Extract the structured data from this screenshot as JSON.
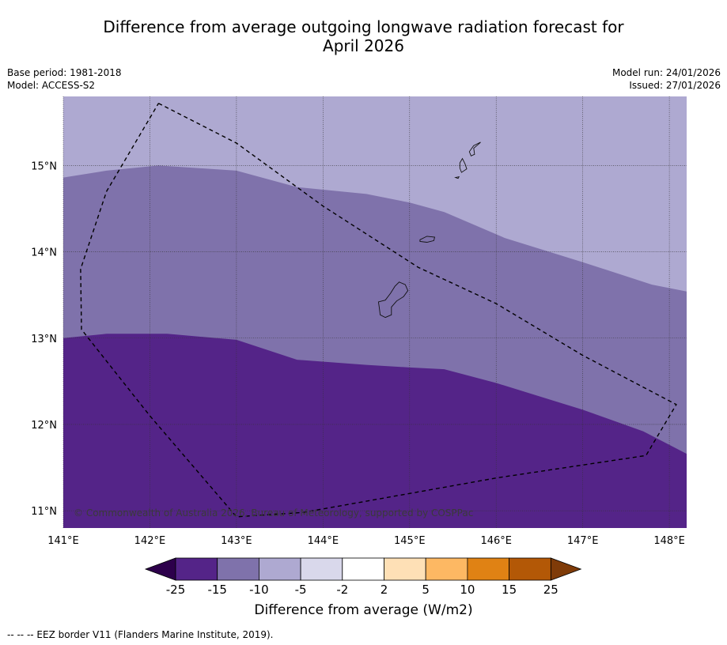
{
  "title": {
    "line1": "Difference from average outgoing longwave radiation forecast for",
    "line2": "April 2026"
  },
  "meta": {
    "base_period": "Base period: 1981-2018",
    "model": "Model: ACCESS-S2",
    "model_run": "Model run: 24/01/2026",
    "issued": "Issued: 27/01/2026"
  },
  "map": {
    "lon_range": [
      141.0,
      148.2
    ],
    "lat_range": [
      10.8,
      15.8
    ],
    "lat_ticks": [
      {
        "value": 15,
        "label": "15°N"
      },
      {
        "value": 14,
        "label": "14°N"
      },
      {
        "value": 13,
        "label": "13°N"
      },
      {
        "value": 12,
        "label": "12°N"
      },
      {
        "value": 11,
        "label": "11°N"
      }
    ],
    "lon_ticks": [
      {
        "value": 141,
        "label": "141°E"
      },
      {
        "value": 142,
        "label": "142°E"
      },
      {
        "value": 143,
        "label": "143°E"
      },
      {
        "value": 144,
        "label": "144°E"
      },
      {
        "value": 145,
        "label": "145°E"
      },
      {
        "value": 146,
        "label": "146°E"
      },
      {
        "value": 147,
        "label": "147°E"
      },
      {
        "value": 148,
        "label": "148°E"
      }
    ],
    "copyright": "© Commonwealth of Australia 2026, Bureau of Meteorology, supported by COSPPac",
    "zones": [
      {
        "range": "-10 to -5",
        "color": "#aea9d1"
      },
      {
        "range": "-15 to -10",
        "color": "#7f72ab"
      },
      {
        "range": "-25 to -15",
        "color": "#542488"
      }
    ],
    "boundary_top": [
      [
        141.0,
        14.86
      ],
      [
        141.5,
        14.94
      ],
      [
        142.1,
        15.0
      ],
      [
        143.0,
        14.94
      ],
      [
        143.7,
        14.75
      ],
      [
        144.5,
        14.67
      ],
      [
        145.0,
        14.57
      ],
      [
        145.4,
        14.46
      ],
      [
        146.1,
        14.16
      ],
      [
        147.0,
        13.88
      ],
      [
        147.8,
        13.62
      ],
      [
        148.2,
        13.54
      ]
    ],
    "boundary_bottom": [
      [
        141.0,
        13.0
      ],
      [
        141.5,
        13.05
      ],
      [
        142.2,
        13.05
      ],
      [
        143.0,
        12.98
      ],
      [
        143.7,
        12.75
      ],
      [
        144.5,
        12.69
      ],
      [
        145.0,
        12.66
      ],
      [
        145.4,
        12.64
      ],
      [
        146.0,
        12.48
      ],
      [
        147.0,
        12.17
      ],
      [
        147.7,
        11.92
      ],
      [
        148.2,
        11.66
      ]
    ],
    "eez_border": [
      [
        142.1,
        15.72
      ],
      [
        143.0,
        15.26
      ],
      [
        144.0,
        14.53
      ],
      [
        145.1,
        13.82
      ],
      [
        146.0,
        13.4
      ],
      [
        147.0,
        12.8
      ],
      [
        148.08,
        12.23
      ],
      [
        147.73,
        11.64
      ],
      [
        146.0,
        11.38
      ],
      [
        145.0,
        11.2
      ],
      [
        143.77,
        10.98
      ],
      [
        143.0,
        10.93
      ],
      [
        142.0,
        12.1
      ],
      [
        141.21,
        13.1
      ],
      [
        141.2,
        13.8
      ],
      [
        141.5,
        14.7
      ],
      [
        142.1,
        15.72
      ]
    ],
    "islands": [
      {
        "name": "Guam",
        "coords": [
          [
            144.88,
            13.65
          ],
          [
            144.95,
            13.62
          ],
          [
            144.98,
            13.55
          ],
          [
            144.93,
            13.48
          ],
          [
            144.85,
            13.43
          ],
          [
            144.79,
            13.36
          ],
          [
            144.79,
            13.27
          ],
          [
            144.72,
            13.24
          ],
          [
            144.66,
            13.27
          ],
          [
            144.65,
            13.35
          ],
          [
            144.64,
            13.42
          ],
          [
            144.72,
            13.44
          ],
          [
            144.78,
            13.52
          ],
          [
            144.83,
            13.6
          ]
        ]
      },
      {
        "name": "Rota",
        "coords": [
          [
            145.12,
            14.14
          ],
          [
            145.2,
            14.18
          ],
          [
            145.29,
            14.17
          ],
          [
            145.28,
            14.13
          ],
          [
            145.2,
            14.11
          ],
          [
            145.12,
            14.12
          ]
        ]
      },
      {
        "name": "Tinian",
        "coords": [
          [
            145.61,
            15.08
          ],
          [
            145.64,
            15.02
          ],
          [
            145.66,
            14.96
          ],
          [
            145.6,
            14.92
          ],
          [
            145.58,
            14.97
          ],
          [
            145.58,
            15.03
          ]
        ]
      },
      {
        "name": "Saipan",
        "coords": [
          [
            145.82,
            15.27
          ],
          [
            145.74,
            15.23
          ],
          [
            145.69,
            15.16
          ],
          [
            145.71,
            15.11
          ],
          [
            145.75,
            15.13
          ],
          [
            145.74,
            15.2
          ],
          [
            145.8,
            15.25
          ]
        ]
      },
      {
        "name": "Aguijan",
        "coords": [
          [
            145.53,
            14.86
          ],
          [
            145.57,
            14.87
          ],
          [
            145.56,
            14.85
          ]
        ]
      }
    ]
  },
  "colorbar": {
    "title": "Difference from average (W/m2)",
    "colors": [
      "#542488",
      "#7f72ab",
      "#aea9d1",
      "#d9d8eb",
      "#ffffff",
      "#fee0b6",
      "#fdb863",
      "#e08214",
      "#b35806"
    ],
    "under_color": "#2d004b",
    "over_color": "#7f3b08",
    "ticks": [
      "-25",
      "-15",
      "-10",
      "-5",
      "-2",
      "2",
      "5",
      "10",
      "15",
      "25"
    ]
  },
  "footnote": "--  --  -- EEZ border V11 (Flanders Marine Institute, 2019)."
}
